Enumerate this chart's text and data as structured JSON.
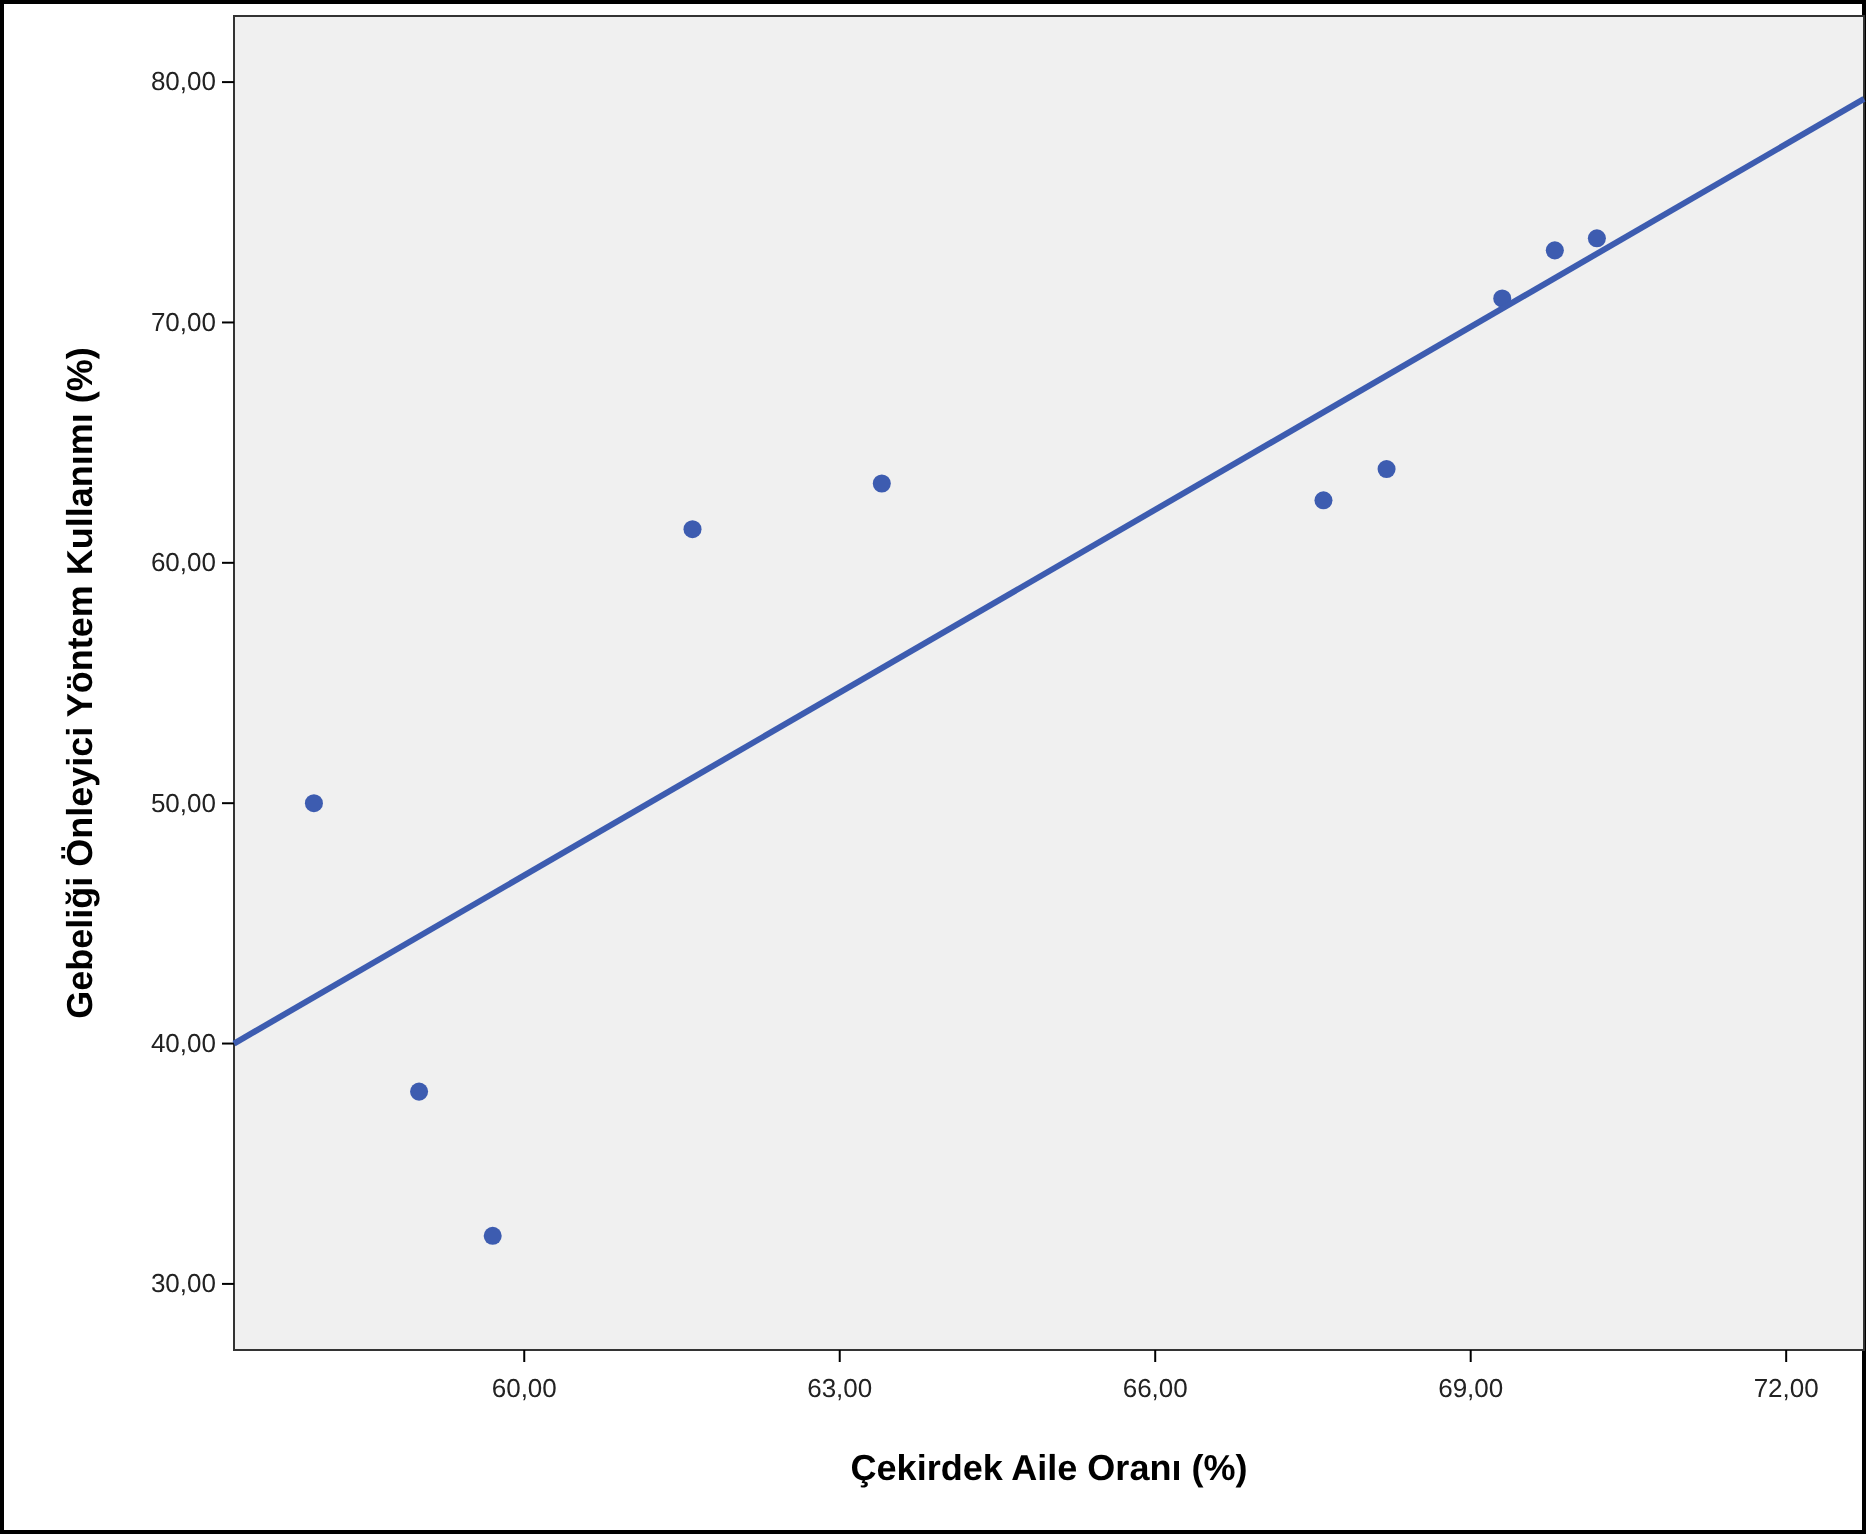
{
  "chart_data": {
    "type": "scatter",
    "xlabel": "Çekirdek Aile Oranı (%)",
    "ylabel": "Gebeliği Önleyici Yöntem Kullanımı (%)",
    "xlim": [
      57.24,
      72.74
    ],
    "ylim": [
      27.25,
      82.75
    ],
    "xticks": [
      {
        "value": 60,
        "label": "60,00"
      },
      {
        "value": 63,
        "label": "63,00"
      },
      {
        "value": 66,
        "label": "66,00"
      },
      {
        "value": 69,
        "label": "69,00"
      },
      {
        "value": 72,
        "label": "72,00"
      }
    ],
    "yticks": [
      {
        "value": 30,
        "label": "30,00"
      },
      {
        "value": 40,
        "label": "40,00"
      },
      {
        "value": 50,
        "label": "50,00"
      },
      {
        "value": 60,
        "label": "60,00"
      },
      {
        "value": 70,
        "label": "70,00"
      },
      {
        "value": 80,
        "label": "80,00"
      }
    ],
    "grid": false,
    "series": [
      {
        "marker": "circle",
        "color": "#3d5cb0",
        "x": [
          58.0,
          59.0,
          59.7,
          61.6,
          63.4,
          67.6,
          68.2,
          69.3,
          69.8,
          70.2
        ],
        "values": [
          50.0,
          38.0,
          32.0,
          61.4,
          63.3,
          62.6,
          63.9,
          71.0,
          73.0,
          73.5
        ]
      },
      {
        "type": "line",
        "color": "#3d5cb0",
        "line_style": "solid",
        "x": [
          57.24,
          72.74
        ],
        "values": [
          40.0,
          79.3
        ]
      }
    ]
  }
}
